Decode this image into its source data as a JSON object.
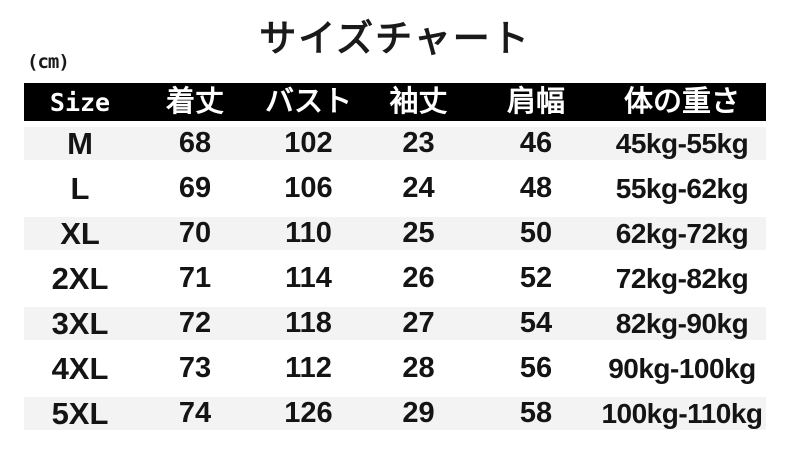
{
  "title": "サイズチャート",
  "unit_label": "(cm)",
  "table": {
    "headers": [
      "Size",
      "着丈",
      "バスト",
      "袖丈",
      "肩幅",
      "体の重さ"
    ],
    "rows": [
      {
        "size": "M",
        "length": "68",
        "bust": "102",
        "sleeve": "23",
        "shoulder": "46",
        "weight": "45kg-55kg"
      },
      {
        "size": "L",
        "length": "69",
        "bust": "106",
        "sleeve": "24",
        "shoulder": "48",
        "weight": "55kg-62kg"
      },
      {
        "size": "XL",
        "length": "70",
        "bust": "110",
        "sleeve": "25",
        "shoulder": "50",
        "weight": "62kg-72kg"
      },
      {
        "size": "2XL",
        "length": "71",
        "bust": "114",
        "sleeve": "26",
        "shoulder": "52",
        "weight": "72kg-82kg"
      },
      {
        "size": "3XL",
        "length": "72",
        "bust": "118",
        "sleeve": "27",
        "shoulder": "54",
        "weight": "82kg-90kg"
      },
      {
        "size": "4XL",
        "length": "73",
        "bust": "112",
        "sleeve": "28",
        "shoulder": "56",
        "weight": "90kg-100kg"
      },
      {
        "size": "5XL",
        "length": "74",
        "bust": "126",
        "sleeve": "29",
        "shoulder": "58",
        "weight": "100kg-110kg"
      }
    ]
  },
  "colors": {
    "header_bg": "#000000",
    "header_text": "#ffffff",
    "alt_row_bg": "#f3f3f3",
    "text_color": "#141414",
    "page_bg": "#ffffff"
  }
}
